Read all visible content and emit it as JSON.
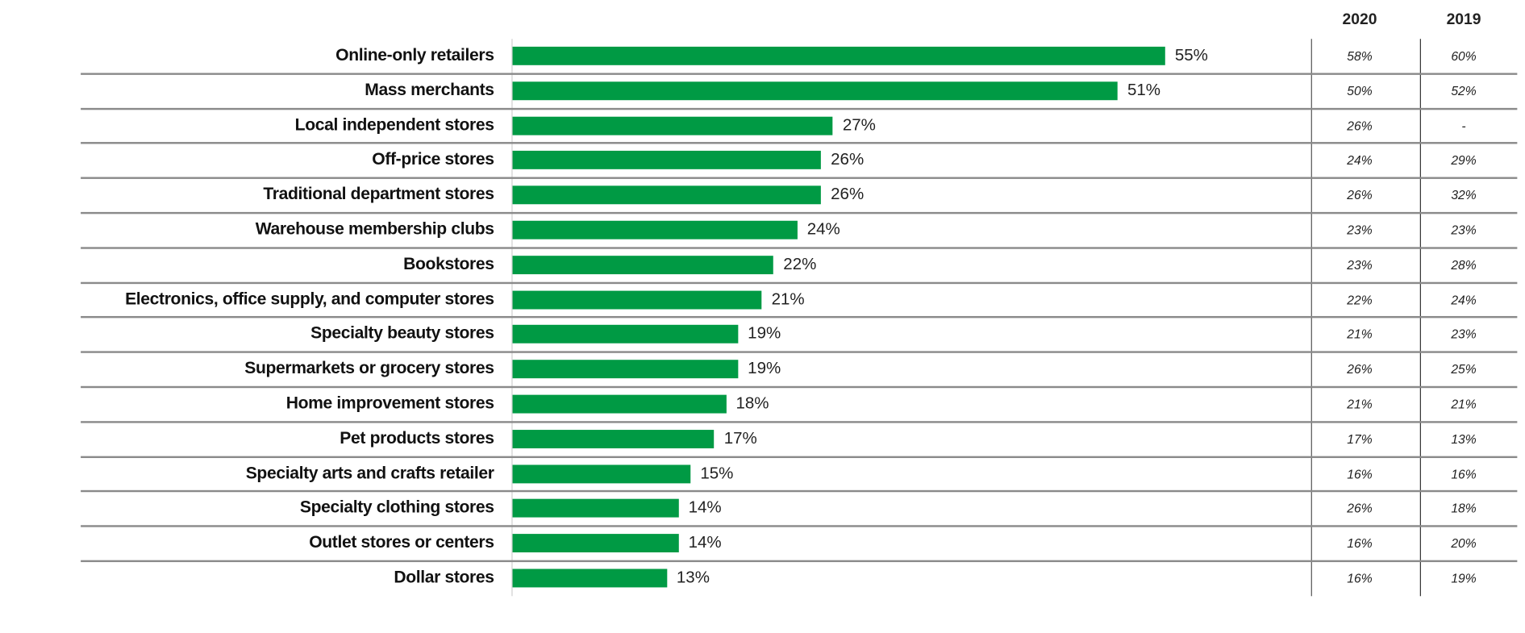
{
  "chart_data": {
    "type": "bar",
    "orientation": "horizontal",
    "bar_color": "#009a44",
    "categories": [
      "Online-only retailers",
      "Mass merchants",
      "Local independent stores",
      "Off-price stores",
      "Traditional department stores",
      "Warehouse membership clubs",
      "Bookstores",
      "Electronics, office supply, and computer stores",
      "Specialty beauty stores",
      "Supermarkets or grocery stores",
      "Home improvement stores",
      "Pet products stores",
      "Specialty arts and crafts retailer",
      "Specialty clothing stores",
      "Outlet stores or centers",
      "Dollar stores"
    ],
    "values": [
      55,
      51,
      27,
      26,
      26,
      24,
      22,
      21,
      19,
      19,
      18,
      17,
      15,
      14,
      14,
      13
    ],
    "value_labels": [
      "55%",
      "51%",
      "27%",
      "26%",
      "26%",
      "24%",
      "22%",
      "21%",
      "19%",
      "19%",
      "18%",
      "17%",
      "15%",
      "14%",
      "14%",
      "13%"
    ],
    "table": {
      "headers": [
        "2020",
        "2019"
      ],
      "col_2020": [
        "58%",
        "50%",
        "26%",
        "24%",
        "26%",
        "23%",
        "23%",
        "22%",
        "21%",
        "26%",
        "21%",
        "17%",
        "16%",
        "26%",
        "16%",
        "16%"
      ],
      "col_2019": [
        "60%",
        "52%",
        "-",
        "29%",
        "32%",
        "23%",
        "28%",
        "24%",
        "23%",
        "25%",
        "21%",
        "13%",
        "16%",
        "18%",
        "20%",
        "19%"
      ]
    }
  }
}
